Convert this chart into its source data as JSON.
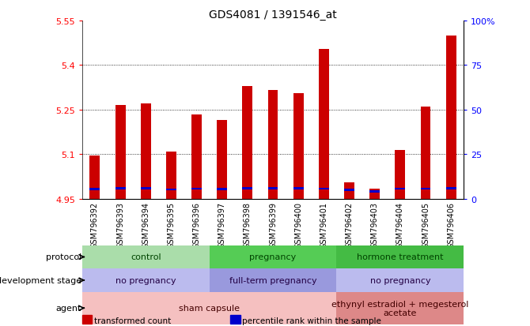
{
  "title": "GDS4081 / 1391546_at",
  "samples": [
    "GSM796392",
    "GSM796393",
    "GSM796394",
    "GSM796395",
    "GSM796396",
    "GSM796397",
    "GSM796398",
    "GSM796399",
    "GSM796400",
    "GSM796401",
    "GSM796402",
    "GSM796403",
    "GSM796404",
    "GSM796405",
    "GSM796406"
  ],
  "transformed_count": [
    5.095,
    5.265,
    5.27,
    5.11,
    5.235,
    5.215,
    5.33,
    5.315,
    5.305,
    5.455,
    5.005,
    4.985,
    5.115,
    5.26,
    5.5
  ],
  "percentile_rank": [
    4.982,
    4.985,
    4.985,
    4.981,
    4.984,
    4.983,
    4.985,
    4.985,
    4.985,
    4.984,
    4.98,
    4.975,
    4.984,
    4.984,
    4.985
  ],
  "y_min": 4.95,
  "y_max": 5.55,
  "y_ticks": [
    4.95,
    5.1,
    5.25,
    5.4,
    5.55
  ],
  "y_tick_labels": [
    "4.95",
    "5.1",
    "5.25",
    "5.4",
    "5.55"
  ],
  "y2_ticks": [
    0,
    25,
    50,
    75,
    100
  ],
  "y2_tick_labels": [
    "0",
    "25",
    "50",
    "75",
    "100%"
  ],
  "bar_color": "#cc0000",
  "percentile_color": "#0000cc",
  "bar_bottom": 4.95,
  "protocol_groups": [
    {
      "label": "control",
      "start": 0,
      "end": 4,
      "color": "#aaddaa"
    },
    {
      "label": "pregnancy",
      "start": 5,
      "end": 9,
      "color": "#55cc55"
    },
    {
      "label": "hormone treatment",
      "start": 10,
      "end": 14,
      "color": "#44bb44"
    }
  ],
  "dev_stage_groups": [
    {
      "label": "no pregnancy",
      "start": 0,
      "end": 4,
      "color": "#bbbbee"
    },
    {
      "label": "full-term pregnancy",
      "start": 5,
      "end": 9,
      "color": "#9999dd"
    },
    {
      "label": "no pregnancy",
      "start": 10,
      "end": 14,
      "color": "#bbbbee"
    }
  ],
  "agent_groups": [
    {
      "label": "sham capsule",
      "start": 0,
      "end": 9,
      "color": "#f5c0c0"
    },
    {
      "label": "ethynyl estradiol + megesterol\nacetate",
      "start": 10,
      "end": 14,
      "color": "#dd8888"
    }
  ],
  "legend_items": [
    {
      "color": "#cc0000",
      "label": "transformed count"
    },
    {
      "color": "#0000cc",
      "label": "percentile rank within the sample"
    }
  ],
  "bg_color": "#cccccc",
  "plot_bg": "#ffffff"
}
